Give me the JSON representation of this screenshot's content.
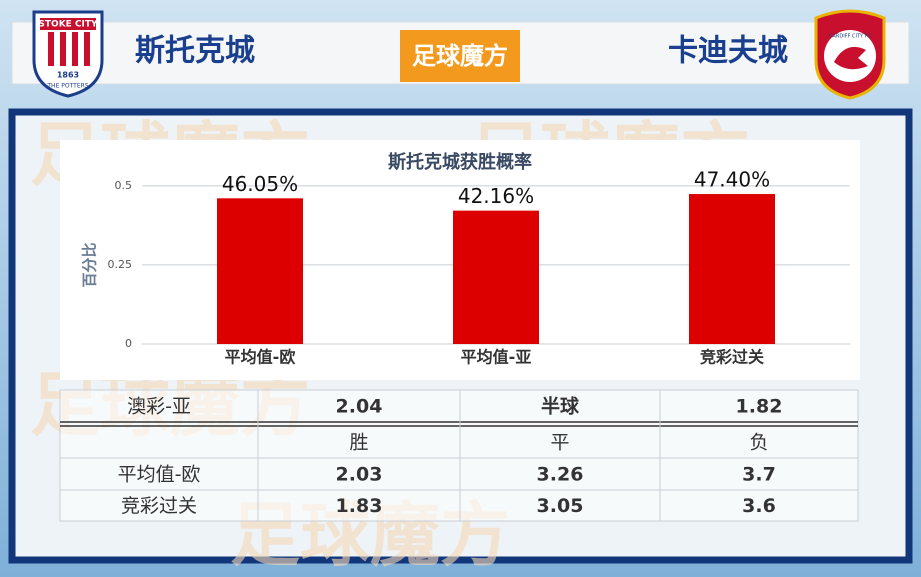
{
  "header": {
    "home": "斯托克城",
    "away": "卡迪夫城",
    "logo": "足球魔方",
    "home_badge": {
      "name": "STOKE CITY",
      "year": "1863",
      "motto": "THE POTTERS"
    },
    "away_badge": {
      "name": "CARDIFF CITY FC"
    }
  },
  "chart_data": {
    "type": "bar",
    "title": "斯托克城获胜概率",
    "y_label": "百分比",
    "categories": [
      "平均值-欧",
      "平均值-亚",
      "竞彩过关"
    ],
    "values": [
      0.4605,
      0.4216,
      0.474
    ],
    "value_labels": [
      "46.05%",
      "42.16%",
      "47.40%"
    ],
    "color": "#dd0000",
    "ylim": [
      0,
      0.55
    ],
    "yticks": [
      0,
      0.25,
      0.5
    ],
    "grid": true
  },
  "table": {
    "asia": [
      "澳彩-亚",
      "2.04",
      "半球",
      "1.82"
    ],
    "columns": [
      "胜",
      "平",
      "负"
    ],
    "rows": [
      [
        "平均值-欧",
        "2.03",
        "3.26",
        "3.7"
      ],
      [
        "竞彩过关",
        "1.83",
        "3.05",
        "3.6"
      ]
    ]
  }
}
